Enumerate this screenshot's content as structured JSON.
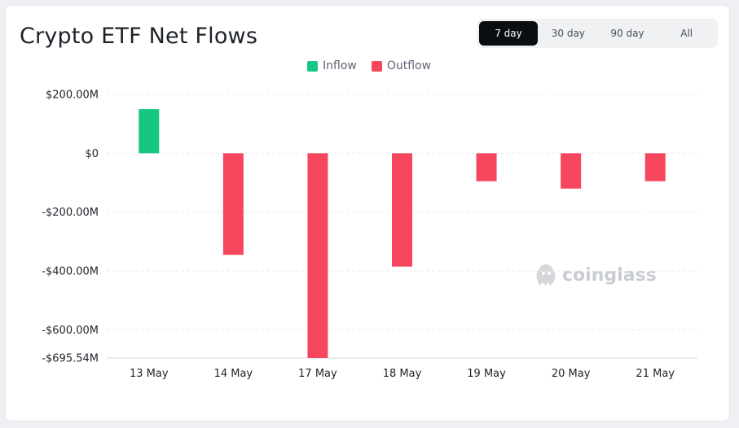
{
  "header": {
    "title": "Crypto ETF Net Flows"
  },
  "tabs": [
    {
      "label": "7 day",
      "active": true
    },
    {
      "label": "30 day",
      "active": false
    },
    {
      "label": "90 day",
      "active": false
    },
    {
      "label": "All",
      "active": false
    }
  ],
  "watermark": {
    "text": "coinglass",
    "icon": "coinglass-logo-icon"
  },
  "colors": {
    "inflow": "#16c784",
    "outflow": "#f6465d"
  },
  "chart_data": {
    "type": "bar",
    "title": "",
    "xlabel": "",
    "ylabel": "",
    "categories": [
      "13 May",
      "14 May",
      "17 May",
      "18 May",
      "19 May",
      "20 May",
      "21 May"
    ],
    "values": [
      150,
      -345,
      -695.54,
      -385,
      -95,
      -120,
      -95
    ],
    "unit": "$M",
    "ylim": [
      -695.54,
      200
    ],
    "yticks": [
      200,
      0,
      -200,
      -400,
      -600,
      -695.54
    ],
    "ytick_labels": [
      "$200.00M",
      "$0",
      "-$200.00M",
      "-$400.00M",
      "-$600.00M",
      "-$695.54M"
    ],
    "legend": [
      {
        "name": "Inflow",
        "color": "#16c784"
      },
      {
        "name": "Outflow",
        "color": "#f6465d"
      }
    ],
    "legend_position": "top-center",
    "grid": true
  }
}
